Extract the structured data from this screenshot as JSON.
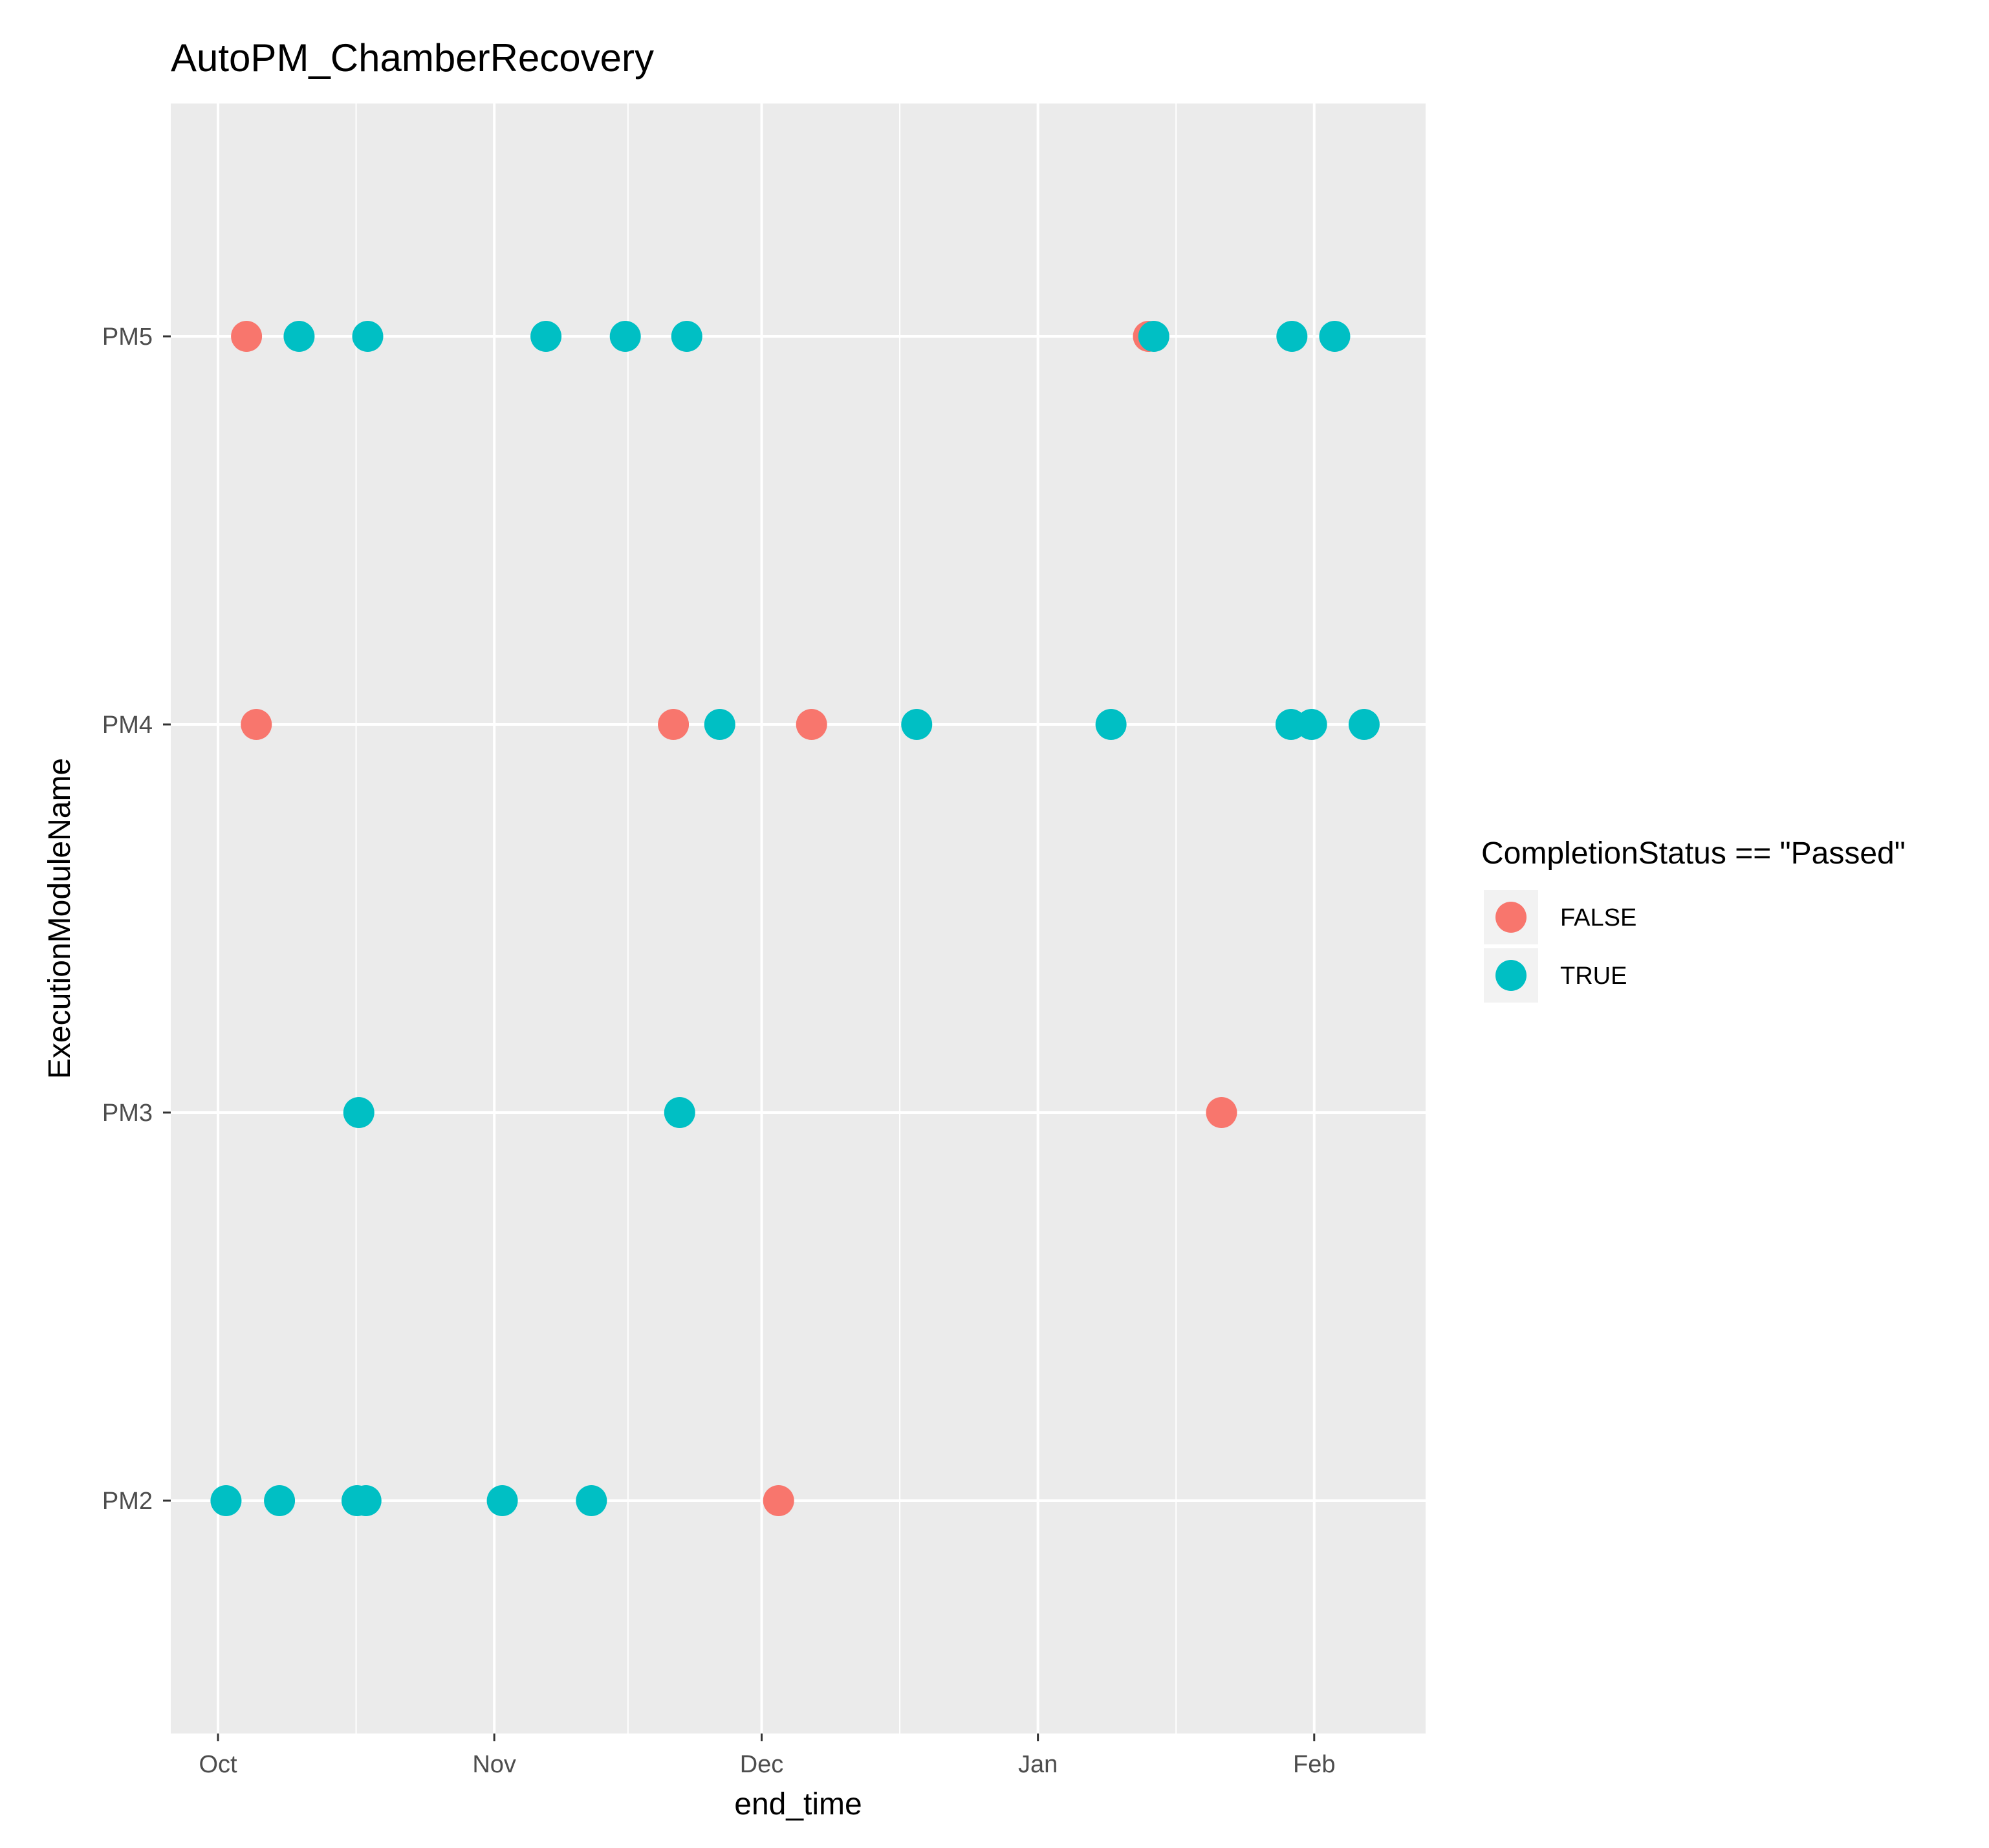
{
  "chart_data": {
    "type": "scatter",
    "title": "AutoPM_ChamberRecovery",
    "xlabel": "end_time",
    "ylabel": "ExecutionModuleName",
    "x_ticks": [
      {
        "label": "Oct",
        "day": 0
      },
      {
        "label": "Nov",
        "day": 31
      },
      {
        "label": "Dec",
        "day": 61
      },
      {
        "label": "Jan",
        "day": 92
      },
      {
        "label": "Feb",
        "day": 123
      }
    ],
    "x_range_days": [
      -5.3,
      135.5
    ],
    "x_unit": "days since Oct 1",
    "y_categories": [
      "PM2",
      "PM3",
      "PM4",
      "PM5"
    ],
    "legend": {
      "title": "CompletionStatus == \"Passed\"",
      "position": "right",
      "entries": [
        {
          "key": "false",
          "label": "FALSE",
          "color": "#F8766D"
        },
        {
          "key": "true",
          "label": "TRUE",
          "color": "#00BFC4"
        }
      ]
    },
    "series": [
      {
        "name": "FALSE",
        "color": "#F8766D",
        "points": [
          {
            "day": 3.2,
            "module": "PM5"
          },
          {
            "day": 104.4,
            "module": "PM5"
          },
          {
            "day": 4.3,
            "module": "PM4"
          },
          {
            "day": 51.1,
            "module": "PM4"
          },
          {
            "day": 66.6,
            "module": "PM4"
          },
          {
            "day": 112.6,
            "module": "PM3"
          },
          {
            "day": 62.9,
            "module": "PM2"
          }
        ]
      },
      {
        "name": "TRUE",
        "color": "#00BFC4",
        "points": [
          {
            "day": 9.1,
            "module": "PM5"
          },
          {
            "day": 16.8,
            "module": "PM5"
          },
          {
            "day": 36.8,
            "module": "PM5"
          },
          {
            "day": 45.7,
            "module": "PM5"
          },
          {
            "day": 52.6,
            "module": "PM5"
          },
          {
            "day": 105.0,
            "module": "PM5"
          },
          {
            "day": 120.5,
            "module": "PM5"
          },
          {
            "day": 125.3,
            "module": "PM5"
          },
          {
            "day": 56.3,
            "module": "PM4"
          },
          {
            "day": 78.4,
            "module": "PM4"
          },
          {
            "day": 100.2,
            "module": "PM4"
          },
          {
            "day": 120.4,
            "module": "PM4"
          },
          {
            "day": 122.7,
            "module": "PM4"
          },
          {
            "day": 128.6,
            "module": "PM4"
          },
          {
            "day": 15.8,
            "module": "PM3"
          },
          {
            "day": 51.8,
            "module": "PM3"
          },
          {
            "day": 0.9,
            "module": "PM2"
          },
          {
            "day": 6.9,
            "module": "PM2"
          },
          {
            "day": 15.6,
            "module": "PM2"
          },
          {
            "day": 16.6,
            "module": "PM2"
          },
          {
            "day": 31.9,
            "module": "PM2"
          },
          {
            "day": 41.9,
            "module": "PM2"
          }
        ]
      }
    ]
  }
}
